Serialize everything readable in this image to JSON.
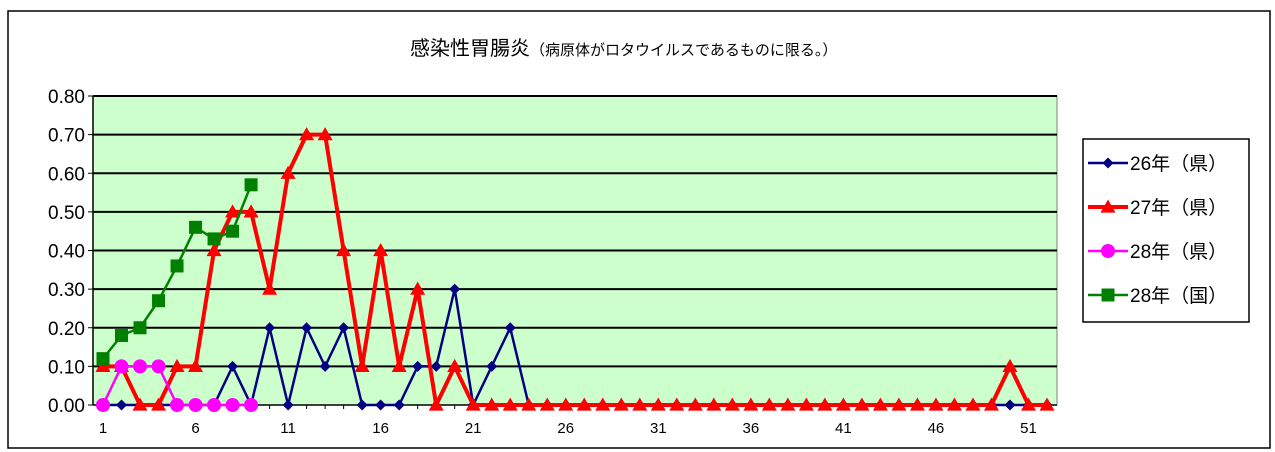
{
  "chart_data": {
    "type": "line",
    "title": "感染性胃腸炎",
    "subtitle": "（病原体がロタウイルスであるものに限る。）",
    "xlabel": "",
    "ylabel": "",
    "xlim": [
      1,
      52
    ],
    "ylim": [
      0,
      0.8
    ],
    "y_ticks": [
      "0.00",
      "0.10",
      "0.20",
      "0.30",
      "0.40",
      "0.50",
      "0.60",
      "0.70",
      "0.80"
    ],
    "x_tick_labels": [
      "1",
      "6",
      "11",
      "16",
      "21",
      "26",
      "31",
      "36",
      "41",
      "46",
      "51"
    ],
    "grid": true,
    "legend_position": "right",
    "plot_background": "#ccffcc",
    "series": [
      {
        "name": "26年（県）",
        "color": "#000080",
        "marker": "diamond",
        "values": [
          0,
          0,
          0,
          0,
          0,
          0,
          0,
          0.1,
          0,
          0.2,
          0,
          0.2,
          0.1,
          0.2,
          0,
          0,
          0,
          0.1,
          0.1,
          0.3,
          0,
          0.1,
          0.2,
          0,
          0,
          0,
          0,
          0,
          0,
          0,
          0,
          0,
          0,
          0,
          0,
          0,
          0,
          0,
          0,
          0,
          0,
          0,
          0,
          0,
          0,
          0,
          0,
          0,
          0,
          0,
          0,
          0
        ]
      },
      {
        "name": "27年（県）",
        "color": "#ff0000",
        "marker": "triangle",
        "values": [
          0.1,
          0.1,
          0,
          0,
          0.1,
          0.1,
          0.4,
          0.5,
          0.5,
          0.3,
          0.6,
          0.7,
          0.7,
          0.4,
          0.1,
          0.4,
          0.1,
          0.3,
          0,
          0.1,
          0,
          0,
          0,
          0,
          0,
          0,
          0,
          0,
          0,
          0,
          0,
          0,
          0,
          0,
          0,
          0,
          0,
          0,
          0,
          0,
          0,
          0,
          0,
          0,
          0,
          0,
          0,
          0,
          0,
          0.1,
          0,
          0
        ]
      },
      {
        "name": "28年（県）",
        "color": "#ff00ff",
        "marker": "circle",
        "values": [
          0,
          0.1,
          0.1,
          0.1,
          0,
          0,
          0,
          0,
          0
        ]
      },
      {
        "name": "28年（国）",
        "color": "#008000",
        "marker": "square",
        "values": [
          0.12,
          0.18,
          0.2,
          0.27,
          0.36,
          0.46,
          0.43,
          0.45,
          0.57
        ]
      }
    ]
  }
}
